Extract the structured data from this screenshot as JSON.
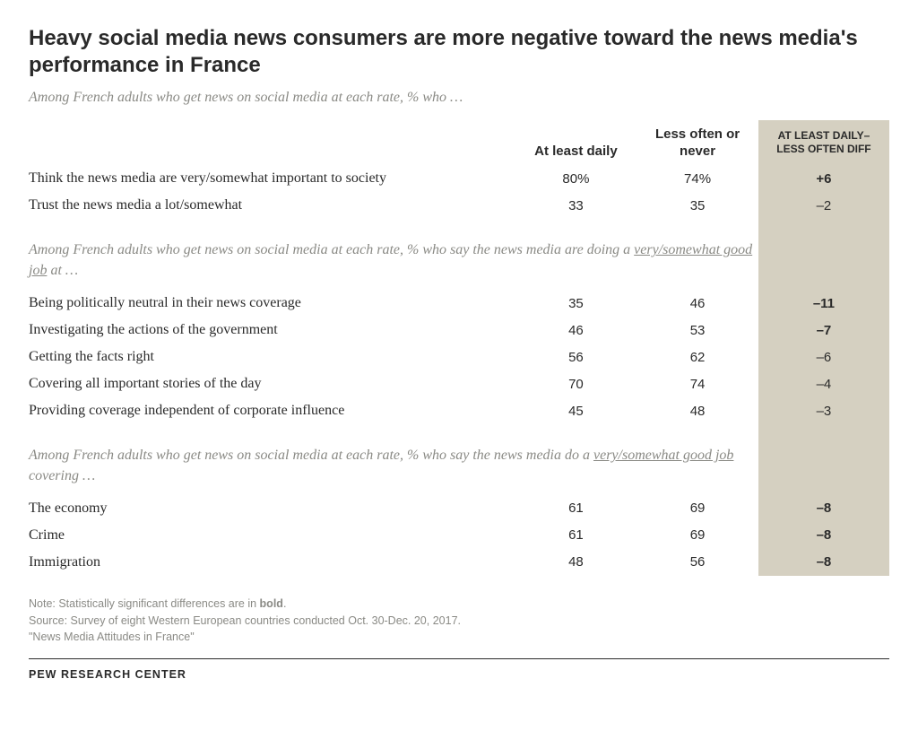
{
  "title": "Heavy social media news consumers are more negative toward the news media's performance in France",
  "subhead1": "Among French adults who get news on social media at each rate, % who …",
  "columns": {
    "label": "",
    "col1": "At least daily",
    "col2": "Less often or never",
    "diff": "AT LEAST DAILY–LESS OFTEN DIFF"
  },
  "section1": {
    "rows": [
      {
        "label": "Think the news media are very/somewhat important to society",
        "c1": "80%",
        "c2": "74%",
        "diff": "+6",
        "bold": true
      },
      {
        "label": "Trust the news media a lot/somewhat",
        "c1": "33",
        "c2": "35",
        "diff": "–2",
        "bold": false
      }
    ]
  },
  "subhead2_pre": "Among French adults who get news on social media at each rate, % who say the news media are doing a ",
  "subhead2_underline": "very/somewhat good job",
  "subhead2_post": " at …",
  "section2": {
    "rows": [
      {
        "label": "Being politically neutral in their news coverage",
        "c1": "35",
        "c2": "46",
        "diff": "–11",
        "bold": true
      },
      {
        "label": "Investigating the actions of the government",
        "c1": "46",
        "c2": "53",
        "diff": "–7",
        "bold": true
      },
      {
        "label": "Getting the facts right",
        "c1": "56",
        "c2": "62",
        "diff": "–6",
        "bold": false
      },
      {
        "label": "Covering all important stories of the day",
        "c1": "70",
        "c2": "74",
        "diff": "–4",
        "bold": false
      },
      {
        "label": "Providing coverage independent of corporate influence",
        "c1": "45",
        "c2": "48",
        "diff": "–3",
        "bold": false
      }
    ]
  },
  "subhead3_pre": "Among French adults who get news on social media at each rate, % who say the news media do a ",
  "subhead3_underline": "very/somewhat good job",
  "subhead3_post": " covering …",
  "section3": {
    "rows": [
      {
        "label": "The economy",
        "c1": "61",
        "c2": "69",
        "diff": "–8",
        "bold": true
      },
      {
        "label": "Crime",
        "c1": "61",
        "c2": "69",
        "diff": "–8",
        "bold": true
      },
      {
        "label": "Immigration",
        "c1": "48",
        "c2": "56",
        "diff": "–8",
        "bold": true
      }
    ]
  },
  "notes": {
    "line1_pre": "Note: Statistically significant differences are in ",
    "line1_bold": "bold",
    "line1_post": ".",
    "line2": "Source: Survey of eight Western European countries conducted Oct. 30-Dec. 20, 2017.",
    "line3": "\"News Media Attitudes in France\""
  },
  "footer": "PEW RESEARCH CENTER",
  "colors": {
    "diff_bg": "#d5d0c1",
    "muted": "#8a8a85",
    "text": "#2a2a2a",
    "background": "#ffffff"
  }
}
